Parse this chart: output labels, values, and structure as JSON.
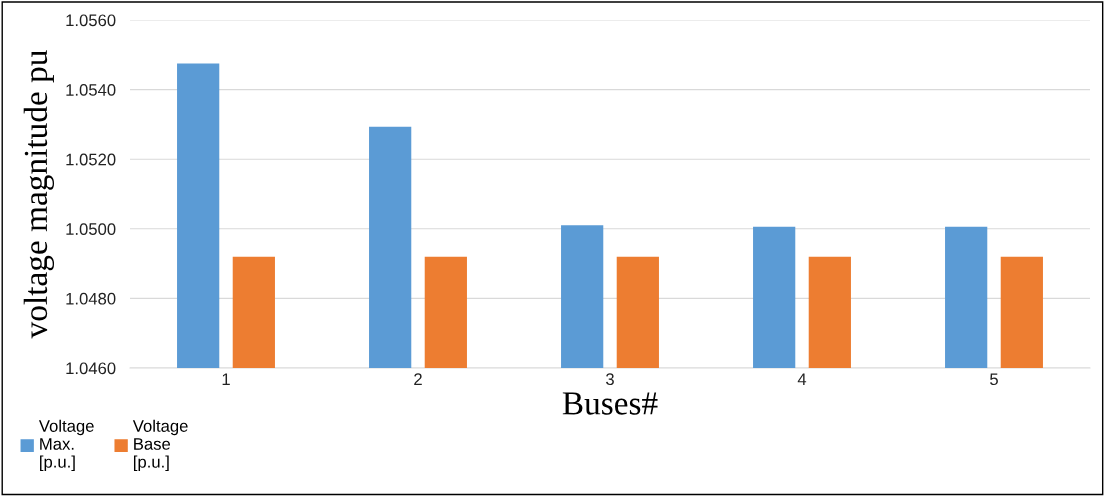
{
  "chart_data": {
    "type": "bar",
    "xlabel": "Buses#",
    "ylabel": "voltage magnitude pu",
    "categories": [
      "1",
      "2",
      "3",
      "4",
      "5"
    ],
    "series": [
      {
        "name": "Voltage\nMax.\n[p.u.]",
        "color": "#5b9bd5",
        "values": [
          1.05475,
          1.05293,
          1.0501,
          1.05006,
          1.05006
        ]
      },
      {
        "name": "Voltage\nBase\n[p.u.]",
        "color": "#ed7d31",
        "values": [
          1.0492,
          1.0492,
          1.0492,
          1.0492,
          1.0492
        ]
      }
    ],
    "ylim": [
      1.046,
      1.056
    ],
    "yticks": [
      {
        "value": 1.046,
        "label": "1.0460"
      },
      {
        "value": 1.048,
        "label": "1.0480"
      },
      {
        "value": 1.05,
        "label": "1.0500"
      },
      {
        "value": 1.052,
        "label": "1.0520"
      },
      {
        "value": 1.054,
        "label": "1.0540"
      },
      {
        "value": 1.056,
        "label": "1.0560"
      }
    ],
    "grid": "y",
    "legend": "bottom left"
  }
}
